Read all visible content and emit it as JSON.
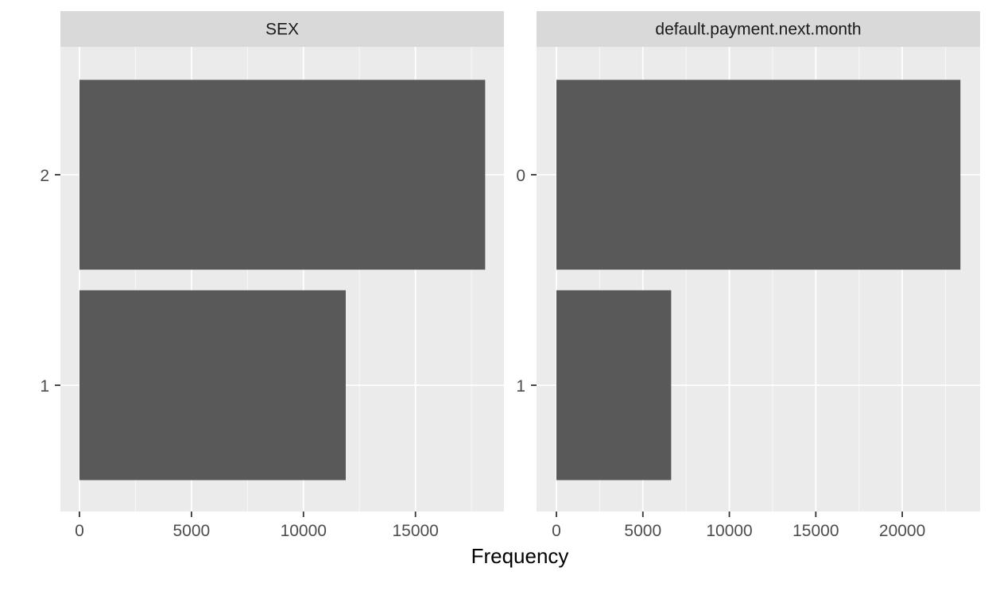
{
  "chart_data": {
    "type": "bar",
    "orientation": "horizontal",
    "xlabel": "Frequency",
    "grid": true,
    "panels": [
      {
        "strip_label": "SEX",
        "categories": [
          "2",
          "1"
        ],
        "values": [
          18112,
          11888
        ],
        "xlim": [
          -850,
          18950
        ],
        "x_ticks": [
          0,
          5000,
          10000,
          15000
        ],
        "x_tick_labels": [
          "0",
          "5000",
          "10000",
          "15000"
        ]
      },
      {
        "strip_label": "default.payment.next.month",
        "categories": [
          "0",
          "1"
        ],
        "values": [
          23364,
          6636
        ],
        "xlim": [
          -1150,
          24500
        ],
        "x_ticks": [
          0,
          5000,
          10000,
          15000,
          20000
        ],
        "x_tick_labels": [
          "0",
          "5000",
          "10000",
          "15000",
          "20000"
        ]
      }
    ]
  },
  "colors": {
    "panel_bg": "#EBEBEB",
    "strip_bg": "#D9D9D9",
    "bar_fill": "#595959",
    "grid_major": "#FFFFFF",
    "tick_text": "#4D4D4D"
  }
}
